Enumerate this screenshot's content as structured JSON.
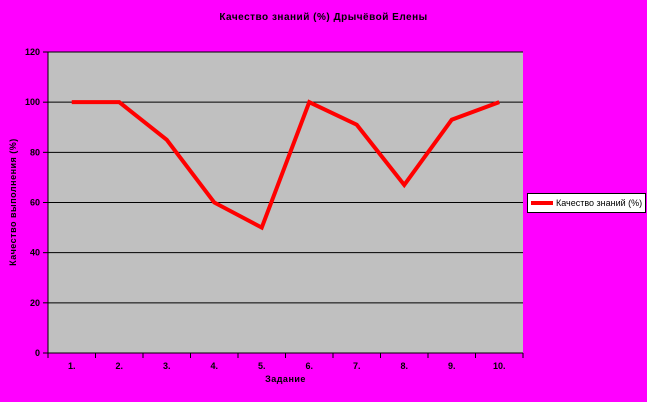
{
  "chart_data": {
    "type": "line",
    "title": "Качество знаний (%) Дрычёвой Елены",
    "xlabel": "Задание",
    "ylabel": "Качество выполнения (%)",
    "categories": [
      "1.",
      "2.",
      "3.",
      "4.",
      "5.",
      "6.",
      "7.",
      "8.",
      "9.",
      "10."
    ],
    "series": [
      {
        "name": "Качество знаний (%)",
        "values": [
          100,
          100,
          85,
          60,
          50,
          100,
          91,
          67,
          93,
          100
        ],
        "color": "#FF0000"
      }
    ],
    "ylim": [
      0,
      120
    ],
    "ytick_labels": [
      "0",
      "20",
      "40",
      "60",
      "80",
      "100",
      "120"
    ],
    "grid": true,
    "legend_position": "right"
  },
  "colors": {
    "background": "#FF00FF",
    "plot_background": "#C0C0C0",
    "gridline": "#000000",
    "axis": "#000000",
    "series_line": "#FF0000",
    "legend_background": "#FFFFFF",
    "legend_border": "#000000",
    "text": "#000000"
  }
}
